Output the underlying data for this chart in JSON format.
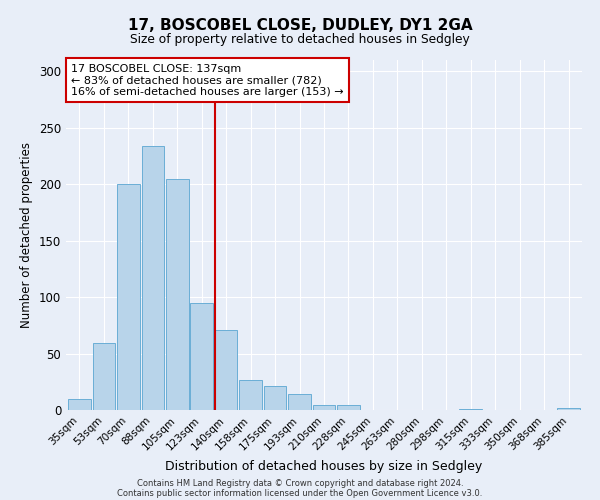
{
  "title1": "17, BOSCOBEL CLOSE, DUDLEY, DY1 2GA",
  "title2": "Size of property relative to detached houses in Sedgley",
  "xlabel": "Distribution of detached houses by size in Sedgley",
  "ylabel": "Number of detached properties",
  "footer1": "Contains HM Land Registry data © Crown copyright and database right 2024.",
  "footer2": "Contains public sector information licensed under the Open Government Licence v3.0.",
  "annotation_line1": "17 BOSCOBEL CLOSE: 137sqm",
  "annotation_line2": "← 83% of detached houses are smaller (782)",
  "annotation_line3": "16% of semi-detached houses are larger (153) →",
  "bar_color": "#b8d4ea",
  "bar_edge_color": "#6aaed6",
  "vline_color": "#cc0000",
  "annotation_box_edge": "#cc0000",
  "categories": [
    "35sqm",
    "53sqm",
    "70sqm",
    "88sqm",
    "105sqm",
    "123sqm",
    "140sqm",
    "158sqm",
    "175sqm",
    "193sqm",
    "210sqm",
    "228sqm",
    "245sqm",
    "263sqm",
    "280sqm",
    "298sqm",
    "315sqm",
    "333sqm",
    "350sqm",
    "368sqm",
    "385sqm"
  ],
  "values": [
    10,
    59,
    200,
    234,
    205,
    95,
    71,
    27,
    21,
    14,
    4,
    4,
    0,
    0,
    0,
    0,
    1,
    0,
    0,
    0,
    2
  ],
  "vline_idx": 6,
  "ylim": [
    0,
    310
  ],
  "yticks": [
    0,
    50,
    100,
    150,
    200,
    250,
    300
  ],
  "bg_color": "#e8eef8",
  "plot_bg": "#e8eef8",
  "grid_color": "#ffffff"
}
